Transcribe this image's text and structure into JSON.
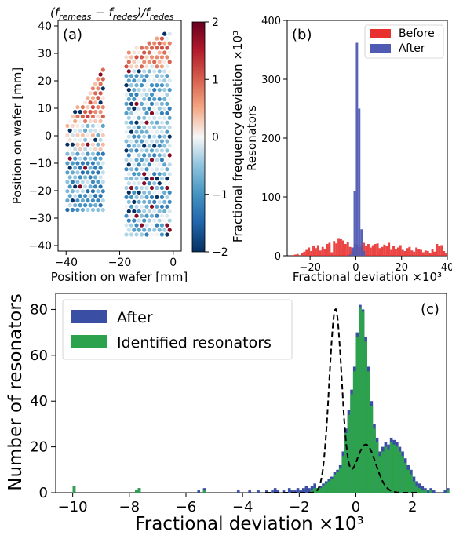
{
  "chart_data": [
    {
      "type": "scatter",
      "panel_label": "(a)",
      "title": "(f_remeas − f_redes)/f_redes",
      "xlabel": "Position on wafer [mm]",
      "ylabel": "Position on wafer [mm]",
      "xlim": [
        -43,
        3
      ],
      "ylim": [
        -42,
        42
      ],
      "x_ticks": [
        -40,
        -20,
        0
      ],
      "y_ticks": [
        -40,
        -30,
        -20,
        -10,
        0,
        10,
        20,
        30,
        40
      ],
      "colorbar": {
        "label": "Fractional frequency deviation ×10³",
        "range": [
          -2,
          2
        ],
        "ticks": [
          -2,
          -1,
          0,
          1,
          2
        ],
        "colormap": "RdBu_r",
        "colors": {
          "low": "#053061",
          "mid": "#f7f7f7",
          "high": "#67001f"
        }
      },
      "points_description": "Resonators on a hexagonal grid in two columns, x from about -40 to -25 mm and -18 to 0 mm"
    },
    {
      "type": "histogram",
      "panel_label": "(b)",
      "xlabel": "Fractional deviation ×10³",
      "ylabel": "Resonators",
      "xlim": [
        -30,
        40
      ],
      "ylim": [
        0,
        400
      ],
      "x_ticks": [
        -20,
        0,
        20,
        40
      ],
      "y_ticks": [
        0,
        100,
        200,
        300,
        400
      ],
      "legend_position": "top-right",
      "bin_width": 1,
      "series": [
        {
          "name": "Before",
          "color": "#e8302f",
          "bin_start": -28,
          "counts": [
            1,
            2,
            3,
            0,
            5,
            7,
            10,
            14,
            8,
            16,
            13,
            18,
            9,
            15,
            11,
            20,
            22,
            6,
            25,
            21,
            30,
            28,
            26,
            20,
            24,
            15,
            8,
            20,
            19,
            14,
            18,
            22,
            16,
            20,
            14,
            18,
            20,
            21,
            13,
            15,
            19,
            17,
            22,
            10,
            16,
            12,
            14,
            18,
            10,
            8,
            13,
            15,
            9,
            7,
            14,
            11,
            10,
            6,
            9,
            8,
            5,
            12,
            7,
            20,
            16,
            18,
            8,
            4
          ]
        },
        {
          "name": "After",
          "color": "#4f5bb3",
          "bin_start": -3,
          "counts": [
            2,
            14,
            110,
            362,
            250,
            45,
            8
          ]
        }
      ]
    },
    {
      "type": "histogram",
      "panel_label": "(c)",
      "xlabel": "Fractional deviation ×10³",
      "ylabel": "Number of resonators",
      "xlim": [
        -10.6,
        3.2
      ],
      "ylim": [
        0,
        87
      ],
      "x_ticks": [
        -10,
        -8,
        -6,
        -4,
        -2,
        0,
        2
      ],
      "y_ticks": [
        0,
        20,
        40,
        60,
        80
      ],
      "legend_position": "top-left",
      "bin_width": 0.1,
      "series": [
        {
          "name": "After",
          "color": "#3a4fa3",
          "bin_start": -10.2,
          "counts": [
            0,
            0,
            3,
            0,
            0,
            0,
            0,
            0,
            0,
            0,
            0,
            0,
            0,
            0,
            0,
            0,
            0,
            0,
            0,
            0,
            0,
            0,
            0,
            0,
            1,
            2,
            0,
            0,
            0,
            0,
            0,
            0,
            0,
            0,
            0,
            0,
            0,
            0,
            0,
            0,
            0,
            0,
            0,
            0,
            0,
            0,
            1,
            0,
            2,
            0,
            0,
            0,
            0,
            0,
            0,
            0,
            0,
            0,
            0,
            0,
            1,
            0,
            0,
            0,
            1,
            0,
            0,
            1,
            0,
            0,
            1,
            0,
            1,
            2,
            1,
            0,
            1,
            0,
            2,
            1,
            1,
            2,
            1,
            2,
            3,
            2,
            3,
            4,
            2,
            3,
            4,
            5,
            6,
            7,
            9,
            10,
            12,
            18,
            28,
            36,
            45,
            55,
            70,
            82,
            80,
            68,
            55,
            40,
            30,
            24,
            18,
            20,
            22,
            21,
            24,
            23,
            22,
            20,
            18,
            15,
            12,
            10,
            7,
            5,
            4,
            3,
            2,
            1,
            2,
            1,
            0,
            0,
            0,
            1,
            2,
            0,
            0,
            0,
            0,
            0,
            0,
            0,
            0,
            1
          ]
        },
        {
          "name": "Identified resonators",
          "color": "#2ca24c",
          "bin_start": -10.2,
          "counts": [
            0,
            0,
            3,
            0,
            0,
            0,
            0,
            0,
            0,
            0,
            0,
            0,
            0,
            0,
            0,
            0,
            0,
            0,
            0,
            0,
            0,
            0,
            0,
            0,
            1,
            2,
            0,
            0,
            0,
            0,
            0,
            0,
            0,
            0,
            0,
            0,
            0,
            0,
            0,
            0,
            0,
            0,
            0,
            0,
            0,
            0,
            0,
            0,
            1,
            0,
            0,
            0,
            0,
            0,
            0,
            0,
            0,
            0,
            0,
            0,
            0,
            0,
            0,
            0,
            0,
            0,
            0,
            0,
            0,
            0,
            0,
            0,
            0,
            0,
            0,
            0,
            0,
            0,
            0,
            0,
            0,
            0,
            0,
            0,
            0,
            0,
            1,
            2,
            2,
            2,
            3,
            4,
            5,
            6,
            8,
            9,
            11,
            16,
            26,
            34,
            43,
            53,
            68,
            81,
            79,
            66,
            53,
            38,
            28,
            22,
            16,
            18,
            20,
            19,
            22,
            21,
            20,
            18,
            16,
            13,
            10,
            8,
            5,
            3,
            2,
            1,
            1,
            0,
            1,
            0,
            0,
            0,
            0,
            0,
            1,
            0,
            0,
            0,
            0,
            0,
            0,
            0,
            0,
            0
          ]
        }
      ],
      "fit": {
        "style": "dashed",
        "color": "#000000"
      }
    }
  ]
}
